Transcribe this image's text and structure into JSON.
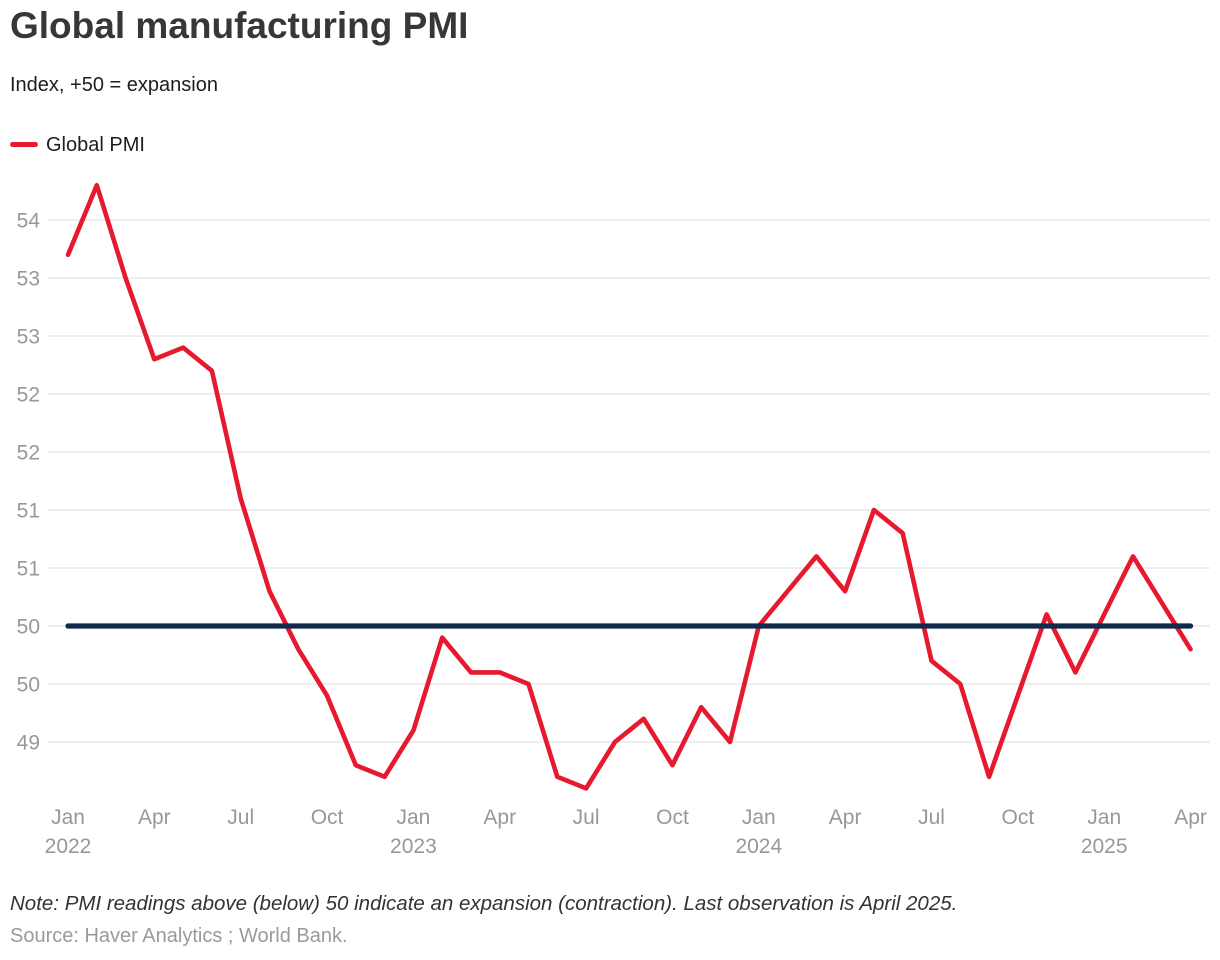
{
  "header": {
    "title": "Global manufacturing PMI",
    "subtitle": "Index, +50 = expansion"
  },
  "legend": {
    "label": "Global PMI"
  },
  "footer": {
    "note": "Note: PMI readings above (below) 50 indicate an expansion (contraction). Last observation is April 2025.",
    "source": "Source: Haver Analytics ; World Bank."
  },
  "colors": {
    "line": "#e6192e",
    "baseline": "#102a4c",
    "grid": "#e8e8e8",
    "axis_text": "#989898"
  },
  "chart_data": {
    "type": "line",
    "title": "Global manufacturing PMI",
    "subtitle": "Index, +50 = expansion",
    "xlabel": "",
    "ylabel": "",
    "grid": true,
    "legend_position": "top-left",
    "baseline": 50,
    "ylim": [
      48.45,
      53.95
    ],
    "y_ticks": [
      49.0,
      49.5,
      50.0,
      50.5,
      51.0,
      51.5,
      52.0,
      52.5,
      53.0,
      53.5
    ],
    "y_tick_labels": [
      "49",
      "50",
      "50",
      "51",
      "51",
      "52",
      "52",
      "53",
      "53",
      "54"
    ],
    "x_ticks": [
      {
        "index": 0,
        "label": "Jan",
        "year": "2022"
      },
      {
        "index": 3,
        "label": "Apr"
      },
      {
        "index": 6,
        "label": "Jul"
      },
      {
        "index": 9,
        "label": "Oct"
      },
      {
        "index": 12,
        "label": "Jan",
        "year": "2023"
      },
      {
        "index": 15,
        "label": "Apr"
      },
      {
        "index": 18,
        "label": "Jul"
      },
      {
        "index": 21,
        "label": "Oct"
      },
      {
        "index": 24,
        "label": "Jan",
        "year": "2024"
      },
      {
        "index": 27,
        "label": "Apr"
      },
      {
        "index": 30,
        "label": "Jul"
      },
      {
        "index": 33,
        "label": "Oct"
      },
      {
        "index": 36,
        "label": "Jan",
        "year": "2025"
      },
      {
        "index": 39,
        "label": "Apr"
      }
    ],
    "x": [
      "Jan 2022",
      "Feb 2022",
      "Mar 2022",
      "Apr 2022",
      "May 2022",
      "Jun 2022",
      "Jul 2022",
      "Aug 2022",
      "Sep 2022",
      "Oct 2022",
      "Nov 2022",
      "Dec 2022",
      "Jan 2023",
      "Feb 2023",
      "Mar 2023",
      "Apr 2023",
      "May 2023",
      "Jun 2023",
      "Jul 2023",
      "Aug 2023",
      "Sep 2023",
      "Oct 2023",
      "Nov 2023",
      "Dec 2023",
      "Jan 2024",
      "Feb 2024",
      "Mar 2024",
      "Apr 2024",
      "May 2024",
      "Jun 2024",
      "Jul 2024",
      "Aug 2024",
      "Sep 2024",
      "Oct 2024",
      "Nov 2024",
      "Dec 2024",
      "Jan 2025",
      "Feb 2025",
      "Mar 2025",
      "Apr 2025"
    ],
    "series": [
      {
        "name": "Global PMI",
        "values": [
          53.2,
          53.8,
          53.0,
          52.3,
          52.4,
          52.2,
          51.1,
          50.3,
          49.8,
          49.4,
          48.8,
          48.7,
          49.1,
          49.9,
          49.6,
          49.6,
          49.5,
          48.7,
          48.6,
          49.0,
          49.2,
          48.8,
          49.3,
          49.0,
          50.0,
          50.3,
          50.6,
          50.3,
          51.0,
          50.8,
          49.7,
          49.5,
          48.7,
          49.4,
          50.1,
          49.6,
          50.1,
          50.6,
          50.2,
          49.8
        ]
      }
    ]
  }
}
